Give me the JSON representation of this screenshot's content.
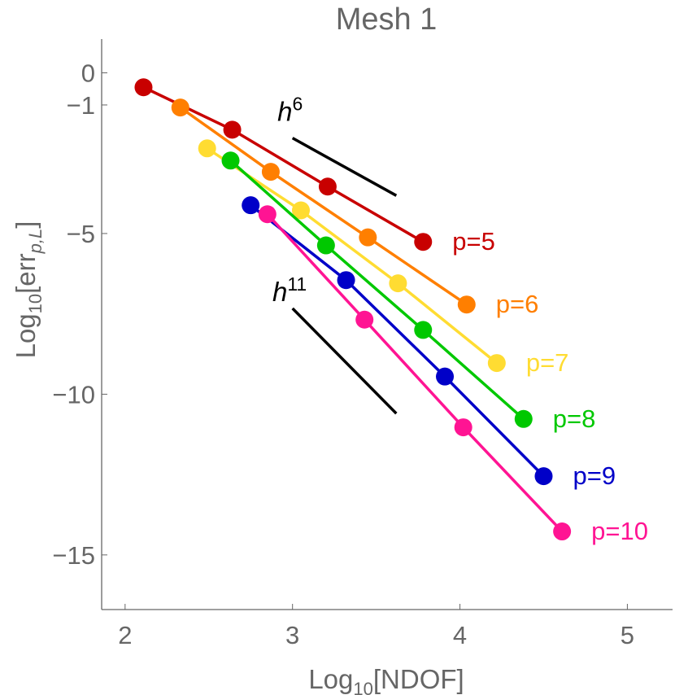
{
  "chart_data": {
    "type": "line",
    "title": "Mesh 1",
    "xlabel": {
      "prefix": "Log",
      "sub": "10",
      "suffix": "[NDOF]"
    },
    "ylabel": {
      "prefix": "Log",
      "sub": "10",
      "mid": "[err",
      "sub2": "p,L",
      "suffix": "]"
    },
    "xlim": [
      1.86,
      5.27
    ],
    "ylim": [
      -16.7,
      1.05
    ],
    "x_ticks": [
      {
        "value": 2,
        "label": "2"
      },
      {
        "value": 3,
        "label": "3"
      },
      {
        "value": 4,
        "label": "4"
      },
      {
        "value": 5,
        "label": "5"
      }
    ],
    "y_ticks": [
      {
        "value": 0,
        "label": "0"
      },
      {
        "value": -1,
        "label": "−1"
      },
      {
        "value": -5,
        "label": "−5"
      },
      {
        "value": -10,
        "label": "−10"
      },
      {
        "value": -15,
        "label": "−15"
      }
    ],
    "series": [
      {
        "name": "p=5",
        "color": "#c80000",
        "x": [
          2.11,
          2.64,
          3.21,
          3.78
        ],
        "y": [
          -0.45,
          -1.77,
          -3.54,
          -5.26
        ]
      },
      {
        "name": "p=6",
        "color": "#ff7f00",
        "x": [
          2.33,
          2.87,
          3.45,
          4.04
        ],
        "y": [
          -1.08,
          -3.08,
          -5.12,
          -7.21
        ]
      },
      {
        "name": "p=7",
        "color": "#ffdc32",
        "x": [
          2.49,
          3.05,
          3.63,
          4.22
        ],
        "y": [
          -2.35,
          -4.28,
          -6.55,
          -9.03
        ]
      },
      {
        "name": "p=8",
        "color": "#00c800",
        "x": [
          2.63,
          3.2,
          3.78,
          4.38
        ],
        "y": [
          -2.73,
          -5.37,
          -8.0,
          -10.77
        ]
      },
      {
        "name": "p=9",
        "color": "#0000c8",
        "x": [
          2.75,
          3.32,
          3.91,
          4.5
        ],
        "y": [
          -4.12,
          -6.45,
          -9.45,
          -12.55
        ]
      },
      {
        "name": "p=10",
        "color": "#ff1493",
        "x": [
          2.85,
          3.43,
          4.02,
          4.61
        ],
        "y": [
          -4.4,
          -7.68,
          -11.03,
          -14.27
        ]
      }
    ],
    "reference_slopes": [
      {
        "base": "h",
        "exp": "6",
        "x1": 3.0,
        "y1": -2.03,
        "x2": 3.62,
        "y2": -3.82,
        "label_x": 2.91,
        "label_y": -1.5
      },
      {
        "base": "h",
        "exp": "11",
        "x1": 3.0,
        "y1": -7.33,
        "x2": 3.62,
        "y2": -10.6,
        "label_x": 2.88,
        "label_y": -7.1
      }
    ]
  }
}
